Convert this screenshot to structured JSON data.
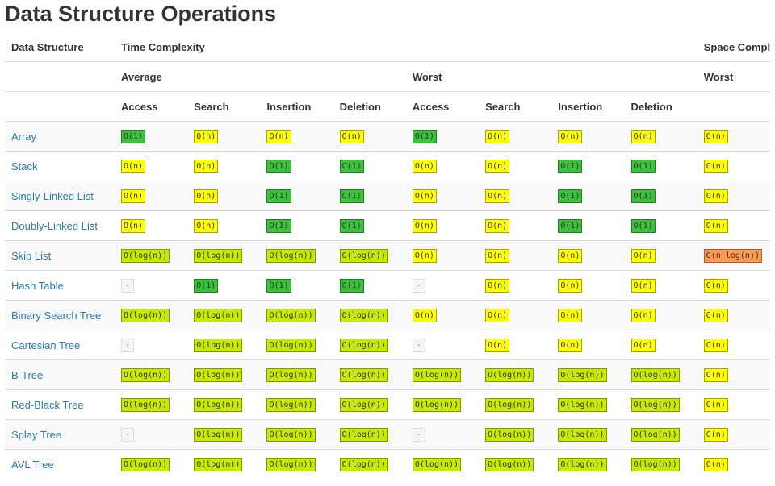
{
  "title": "Data Structure Operations",
  "table": {
    "headers": {
      "data_structure": "Data Structure",
      "time_complexity": "Time Complexity",
      "space_complexity": "Space Complexity",
      "average": "Average",
      "worst": "Worst",
      "space_worst": "Worst",
      "operations": [
        "Access",
        "Search",
        "Insertion",
        "Deletion",
        "Access",
        "Search",
        "Insertion",
        "Deletion"
      ]
    },
    "rows": [
      {
        "name": "Array",
        "cells": [
          {
            "text": "O(1)",
            "color": "#3bc23b"
          },
          {
            "text": "O(n)",
            "color": "#ffff00"
          },
          {
            "text": "O(n)",
            "color": "#ffff00"
          },
          {
            "text": "O(n)",
            "color": "#ffff00"
          },
          {
            "text": "O(1)",
            "color": "#3bc23b"
          },
          {
            "text": "O(n)",
            "color": "#ffff00"
          },
          {
            "text": "O(n)",
            "color": "#ffff00"
          },
          {
            "text": "O(n)",
            "color": "#ffff00"
          },
          {
            "text": "O(n)",
            "color": "#ffff00"
          }
        ]
      },
      {
        "name": "Stack",
        "cells": [
          {
            "text": "O(n)",
            "color": "#ffff00"
          },
          {
            "text": "O(n)",
            "color": "#ffff00"
          },
          {
            "text": "O(1)",
            "color": "#3bc23b"
          },
          {
            "text": "O(1)",
            "color": "#3bc23b"
          },
          {
            "text": "O(n)",
            "color": "#ffff00"
          },
          {
            "text": "O(n)",
            "color": "#ffff00"
          },
          {
            "text": "O(1)",
            "color": "#3bc23b"
          },
          {
            "text": "O(1)",
            "color": "#3bc23b"
          },
          {
            "text": "O(n)",
            "color": "#ffff00"
          }
        ]
      },
      {
        "name": "Singly-Linked List",
        "cells": [
          {
            "text": "O(n)",
            "color": "#ffff00"
          },
          {
            "text": "O(n)",
            "color": "#ffff00"
          },
          {
            "text": "O(1)",
            "color": "#3bc23b"
          },
          {
            "text": "O(1)",
            "color": "#3bc23b"
          },
          {
            "text": "O(n)",
            "color": "#ffff00"
          },
          {
            "text": "O(n)",
            "color": "#ffff00"
          },
          {
            "text": "O(1)",
            "color": "#3bc23b"
          },
          {
            "text": "O(1)",
            "color": "#3bc23b"
          },
          {
            "text": "O(n)",
            "color": "#ffff00"
          }
        ]
      },
      {
        "name": "Doubly-Linked List",
        "cells": [
          {
            "text": "O(n)",
            "color": "#ffff00"
          },
          {
            "text": "O(n)",
            "color": "#ffff00"
          },
          {
            "text": "O(1)",
            "color": "#3bc23b"
          },
          {
            "text": "O(1)",
            "color": "#3bc23b"
          },
          {
            "text": "O(n)",
            "color": "#ffff00"
          },
          {
            "text": "O(n)",
            "color": "#ffff00"
          },
          {
            "text": "O(1)",
            "color": "#3bc23b"
          },
          {
            "text": "O(1)",
            "color": "#3bc23b"
          },
          {
            "text": "O(n)",
            "color": "#ffff00"
          }
        ]
      },
      {
        "name": "Skip List",
        "cells": [
          {
            "text": "O(log(n))",
            "color": "#c8ea00"
          },
          {
            "text": "O(log(n))",
            "color": "#c8ea00"
          },
          {
            "text": "O(log(n))",
            "color": "#c8ea00"
          },
          {
            "text": "O(log(n))",
            "color": "#c8ea00"
          },
          {
            "text": "O(n)",
            "color": "#ffff00"
          },
          {
            "text": "O(n)",
            "color": "#ffff00"
          },
          {
            "text": "O(n)",
            "color": "#ffff00"
          },
          {
            "text": "O(n)",
            "color": "#ffff00"
          },
          {
            "text": "O(n log(n))",
            "color": "#ff9a50"
          }
        ]
      },
      {
        "name": "Hash Table",
        "cells": [
          {
            "text": "-",
            "color": "#f5f5f5"
          },
          {
            "text": "O(1)",
            "color": "#3bc23b"
          },
          {
            "text": "O(1)",
            "color": "#3bc23b"
          },
          {
            "text": "O(1)",
            "color": "#3bc23b"
          },
          {
            "text": "-",
            "color": "#f5f5f5"
          },
          {
            "text": "O(n)",
            "color": "#ffff00"
          },
          {
            "text": "O(n)",
            "color": "#ffff00"
          },
          {
            "text": "O(n)",
            "color": "#ffff00"
          },
          {
            "text": "O(n)",
            "color": "#ffff00"
          }
        ]
      },
      {
        "name": "Binary Search Tree",
        "cells": [
          {
            "text": "O(log(n))",
            "color": "#c8ea00"
          },
          {
            "text": "O(log(n))",
            "color": "#c8ea00"
          },
          {
            "text": "O(log(n))",
            "color": "#c8ea00"
          },
          {
            "text": "O(log(n))",
            "color": "#c8ea00"
          },
          {
            "text": "O(n)",
            "color": "#ffff00"
          },
          {
            "text": "O(n)",
            "color": "#ffff00"
          },
          {
            "text": "O(n)",
            "color": "#ffff00"
          },
          {
            "text": "O(n)",
            "color": "#ffff00"
          },
          {
            "text": "O(n)",
            "color": "#ffff00"
          }
        ]
      },
      {
        "name": "Cartesian Tree",
        "cells": [
          {
            "text": "-",
            "color": "#f5f5f5"
          },
          {
            "text": "O(log(n))",
            "color": "#c8ea00"
          },
          {
            "text": "O(log(n))",
            "color": "#c8ea00"
          },
          {
            "text": "O(log(n))",
            "color": "#c8ea00"
          },
          {
            "text": "-",
            "color": "#f5f5f5"
          },
          {
            "text": "O(n)",
            "color": "#ffff00"
          },
          {
            "text": "O(n)",
            "color": "#ffff00"
          },
          {
            "text": "O(n)",
            "color": "#ffff00"
          },
          {
            "text": "O(n)",
            "color": "#ffff00"
          }
        ]
      },
      {
        "name": "B-Tree",
        "cells": [
          {
            "text": "O(log(n))",
            "color": "#c8ea00"
          },
          {
            "text": "O(log(n))",
            "color": "#c8ea00"
          },
          {
            "text": "O(log(n))",
            "color": "#c8ea00"
          },
          {
            "text": "O(log(n))",
            "color": "#c8ea00"
          },
          {
            "text": "O(log(n))",
            "color": "#c8ea00"
          },
          {
            "text": "O(log(n))",
            "color": "#c8ea00"
          },
          {
            "text": "O(log(n))",
            "color": "#c8ea00"
          },
          {
            "text": "O(log(n))",
            "color": "#c8ea00"
          },
          {
            "text": "O(n)",
            "color": "#ffff00"
          }
        ]
      },
      {
        "name": "Red-Black Tree",
        "cells": [
          {
            "text": "O(log(n))",
            "color": "#c8ea00"
          },
          {
            "text": "O(log(n))",
            "color": "#c8ea00"
          },
          {
            "text": "O(log(n))",
            "color": "#c8ea00"
          },
          {
            "text": "O(log(n))",
            "color": "#c8ea00"
          },
          {
            "text": "O(log(n))",
            "color": "#c8ea00"
          },
          {
            "text": "O(log(n))",
            "color": "#c8ea00"
          },
          {
            "text": "O(log(n))",
            "color": "#c8ea00"
          },
          {
            "text": "O(log(n))",
            "color": "#c8ea00"
          },
          {
            "text": "O(n)",
            "color": "#ffff00"
          }
        ]
      },
      {
        "name": "Splay Tree",
        "cells": [
          {
            "text": "-",
            "color": "#f5f5f5"
          },
          {
            "text": "O(log(n))",
            "color": "#c8ea00"
          },
          {
            "text": "O(log(n))",
            "color": "#c8ea00"
          },
          {
            "text": "O(log(n))",
            "color": "#c8ea00"
          },
          {
            "text": "-",
            "color": "#f5f5f5"
          },
          {
            "text": "O(log(n))",
            "color": "#c8ea00"
          },
          {
            "text": "O(log(n))",
            "color": "#c8ea00"
          },
          {
            "text": "O(log(n))",
            "color": "#c8ea00"
          },
          {
            "text": "O(n)",
            "color": "#ffff00"
          }
        ]
      },
      {
        "name": "AVL Tree",
        "cells": [
          {
            "text": "O(log(n))",
            "color": "#c8ea00"
          },
          {
            "text": "O(log(n))",
            "color": "#c8ea00"
          },
          {
            "text": "O(log(n))",
            "color": "#c8ea00"
          },
          {
            "text": "O(log(n))",
            "color": "#c8ea00"
          },
          {
            "text": "O(log(n))",
            "color": "#c8ea00"
          },
          {
            "text": "O(log(n))",
            "color": "#c8ea00"
          },
          {
            "text": "O(log(n))",
            "color": "#c8ea00"
          },
          {
            "text": "O(log(n))",
            "color": "#c8ea00"
          },
          {
            "text": "O(n)",
            "color": "#ffff00"
          }
        ]
      }
    ]
  }
}
